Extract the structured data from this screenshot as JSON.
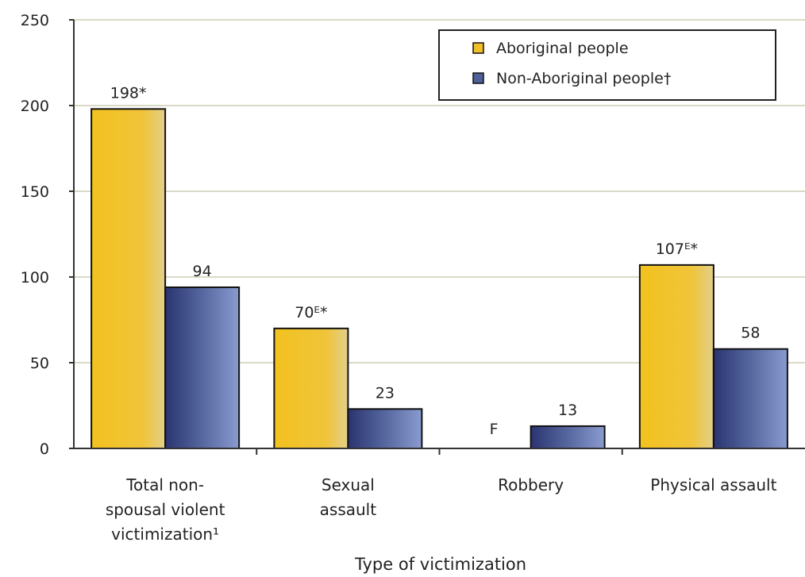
{
  "chart_data": {
    "type": "bar",
    "title": "",
    "xlabel": "Type of victimization",
    "ylabel": "",
    "ylim": [
      0,
      250
    ],
    "yticks": [
      "0",
      "50",
      "100",
      "150",
      "200",
      "250"
    ],
    "grid": true,
    "legend_position": "top-right",
    "categories": [
      [
        "Total non-",
        "spousal violent",
        "victimization¹"
      ],
      [
        "Sexual",
        "assault"
      ],
      [
        "Robbery"
      ],
      [
        "Physical assault"
      ]
    ],
    "series": [
      {
        "name": "Aboriginal people",
        "color": "#f0bf2a",
        "values": [
          198,
          70,
          null,
          107
        ],
        "labels": [
          "198*",
          "70ᴱ*",
          "F",
          "107ᴱ*"
        ]
      },
      {
        "name": "Non-Aboriginal people†",
        "color": "#4f5f97",
        "values": [
          94,
          23,
          13,
          58
        ],
        "labels": [
          "94",
          "23",
          "13",
          "58"
        ]
      }
    ]
  }
}
